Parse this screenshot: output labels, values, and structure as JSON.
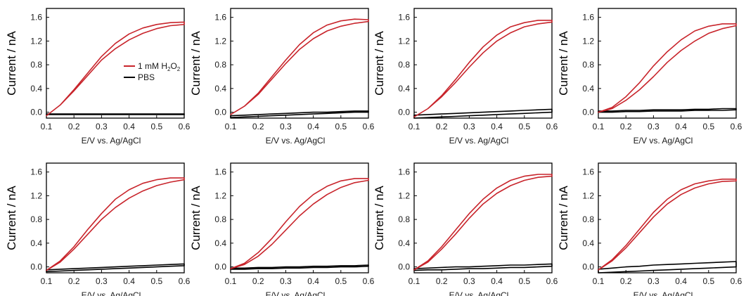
{
  "chart_data": {
    "type": "line",
    "xlabel": "E/V vs. Ag/AgCl",
    "ylabel": "Current / nA",
    "xlim": [
      0.1,
      0.6
    ],
    "ylim": [
      -0.1,
      1.75
    ],
    "xticks": [
      "0.1",
      "0.2",
      "0.3",
      "0.4",
      "0.5",
      "0.6"
    ],
    "yticks": [
      "0.0",
      "0.4",
      "0.8",
      "1.2",
      "1.6"
    ],
    "legend": {
      "location": "center-right",
      "entries": [
        {
          "parts": [
            "1 mM H",
            "2",
            "O",
            "2"
          ],
          "color": "#c8242b"
        },
        {
          "parts": [
            "PBS"
          ],
          "color": "#000000"
        }
      ]
    },
    "colors": {
      "h2o2": "#c8242b",
      "pbs": "#000000"
    },
    "x": [
      0.1,
      0.15,
      0.2,
      0.25,
      0.3,
      0.35,
      0.4,
      0.45,
      0.5,
      0.55,
      0.6
    ],
    "panels": [
      {
        "h2o2_forward": [
          -0.06,
          0.12,
          0.36,
          0.62,
          0.88,
          1.07,
          1.22,
          1.33,
          1.41,
          1.46,
          1.48
        ],
        "h2o2_reverse": [
          -0.06,
          0.12,
          0.38,
          0.66,
          0.94,
          1.16,
          1.32,
          1.42,
          1.48,
          1.51,
          1.52
        ],
        "pbs_forward": [
          -0.04,
          -0.04,
          -0.04,
          -0.04,
          -0.04,
          -0.04,
          -0.04,
          -0.04,
          -0.04,
          -0.04,
          -0.04
        ],
        "pbs_reverse": [
          -0.03,
          -0.03,
          -0.03,
          -0.03,
          -0.03,
          -0.03,
          -0.03,
          -0.03,
          -0.03,
          -0.03,
          -0.03
        ]
      },
      {
        "h2o2_forward": [
          -0.04,
          0.1,
          0.3,
          0.56,
          0.82,
          1.06,
          1.24,
          1.37,
          1.45,
          1.5,
          1.53
        ],
        "h2o2_reverse": [
          -0.04,
          0.1,
          0.32,
          0.6,
          0.88,
          1.14,
          1.34,
          1.47,
          1.54,
          1.57,
          1.56
        ],
        "pbs_forward": [
          -0.09,
          -0.08,
          -0.07,
          -0.06,
          -0.05,
          -0.04,
          -0.03,
          -0.02,
          -0.01,
          0.0,
          0.0
        ],
        "pbs_reverse": [
          -0.06,
          -0.05,
          -0.04,
          -0.03,
          -0.02,
          -0.01,
          0.0,
          0.0,
          0.01,
          0.02,
          0.02
        ]
      },
      {
        "h2o2_forward": [
          -0.08,
          0.06,
          0.26,
          0.5,
          0.76,
          1.0,
          1.2,
          1.34,
          1.44,
          1.49,
          1.52
        ],
        "h2o2_reverse": [
          -0.08,
          0.06,
          0.28,
          0.55,
          0.84,
          1.1,
          1.3,
          1.44,
          1.51,
          1.55,
          1.55
        ],
        "pbs_forward": [
          -0.1,
          -0.09,
          -0.08,
          -0.07,
          -0.06,
          -0.05,
          -0.04,
          -0.03,
          -0.02,
          -0.01,
          0.0
        ],
        "pbs_reverse": [
          -0.05,
          -0.04,
          -0.03,
          -0.02,
          -0.01,
          0.0,
          0.01,
          0.02,
          0.03,
          0.04,
          0.05
        ]
      },
      {
        "h2o2_forward": [
          0.0,
          0.06,
          0.2,
          0.38,
          0.6,
          0.84,
          1.04,
          1.2,
          1.33,
          1.41,
          1.46
        ],
        "h2o2_reverse": [
          0.0,
          0.08,
          0.26,
          0.5,
          0.78,
          1.02,
          1.22,
          1.37,
          1.45,
          1.49,
          1.49
        ],
        "pbs_forward": [
          0.0,
          0.0,
          0.01,
          0.01,
          0.02,
          0.02,
          0.02,
          0.03,
          0.03,
          0.03,
          0.04
        ],
        "pbs_reverse": [
          0.02,
          0.02,
          0.03,
          0.03,
          0.04,
          0.04,
          0.04,
          0.05,
          0.05,
          0.06,
          0.06
        ]
      },
      {
        "h2o2_forward": [
          -0.06,
          0.08,
          0.3,
          0.55,
          0.8,
          1.0,
          1.16,
          1.28,
          1.37,
          1.43,
          1.47
        ],
        "h2o2_reverse": [
          -0.06,
          0.1,
          0.34,
          0.63,
          0.9,
          1.14,
          1.3,
          1.41,
          1.47,
          1.5,
          1.5
        ],
        "pbs_forward": [
          -0.08,
          -0.07,
          -0.06,
          -0.05,
          -0.04,
          -0.03,
          -0.02,
          -0.01,
          0.0,
          0.01,
          0.02
        ],
        "pbs_reverse": [
          -0.05,
          -0.04,
          -0.03,
          -0.02,
          -0.01,
          0.0,
          0.01,
          0.02,
          0.03,
          0.04,
          0.05
        ]
      },
      {
        "h2o2_forward": [
          -0.03,
          0.04,
          0.18,
          0.38,
          0.62,
          0.86,
          1.06,
          1.22,
          1.34,
          1.42,
          1.46
        ],
        "h2o2_reverse": [
          -0.03,
          0.06,
          0.24,
          0.48,
          0.76,
          1.02,
          1.22,
          1.36,
          1.45,
          1.49,
          1.49
        ],
        "pbs_forward": [
          -0.04,
          -0.04,
          -0.03,
          -0.03,
          -0.02,
          -0.02,
          -0.01,
          -0.01,
          0.0,
          0.0,
          0.01
        ],
        "pbs_reverse": [
          -0.02,
          -0.02,
          -0.01,
          -0.01,
          0.0,
          0.0,
          0.01,
          0.01,
          0.02,
          0.02,
          0.03
        ]
      },
      {
        "h2o2_forward": [
          -0.05,
          0.08,
          0.3,
          0.55,
          0.82,
          1.06,
          1.24,
          1.37,
          1.46,
          1.51,
          1.53
        ],
        "h2o2_reverse": [
          -0.05,
          0.1,
          0.34,
          0.62,
          0.9,
          1.14,
          1.33,
          1.46,
          1.53,
          1.56,
          1.56
        ],
        "pbs_forward": [
          -0.06,
          -0.05,
          -0.05,
          -0.04,
          -0.03,
          -0.03,
          -0.02,
          -0.01,
          -0.01,
          0.0,
          0.01
        ],
        "pbs_reverse": [
          -0.03,
          -0.02,
          -0.01,
          0.0,
          0.0,
          0.01,
          0.02,
          0.03,
          0.03,
          0.04,
          0.05
        ]
      },
      {
        "h2o2_forward": [
          -0.05,
          0.1,
          0.32,
          0.58,
          0.84,
          1.06,
          1.22,
          1.33,
          1.4,
          1.44,
          1.45
        ],
        "h2o2_reverse": [
          -0.05,
          0.12,
          0.36,
          0.64,
          0.92,
          1.14,
          1.3,
          1.4,
          1.45,
          1.48,
          1.48
        ],
        "pbs_forward": [
          -0.1,
          -0.09,
          -0.08,
          -0.07,
          -0.06,
          -0.05,
          -0.04,
          -0.03,
          -0.02,
          -0.01,
          0.0
        ],
        "pbs_reverse": [
          -0.04,
          -0.02,
          0.0,
          0.01,
          0.03,
          0.04,
          0.05,
          0.06,
          0.07,
          0.08,
          0.09
        ]
      }
    ]
  }
}
